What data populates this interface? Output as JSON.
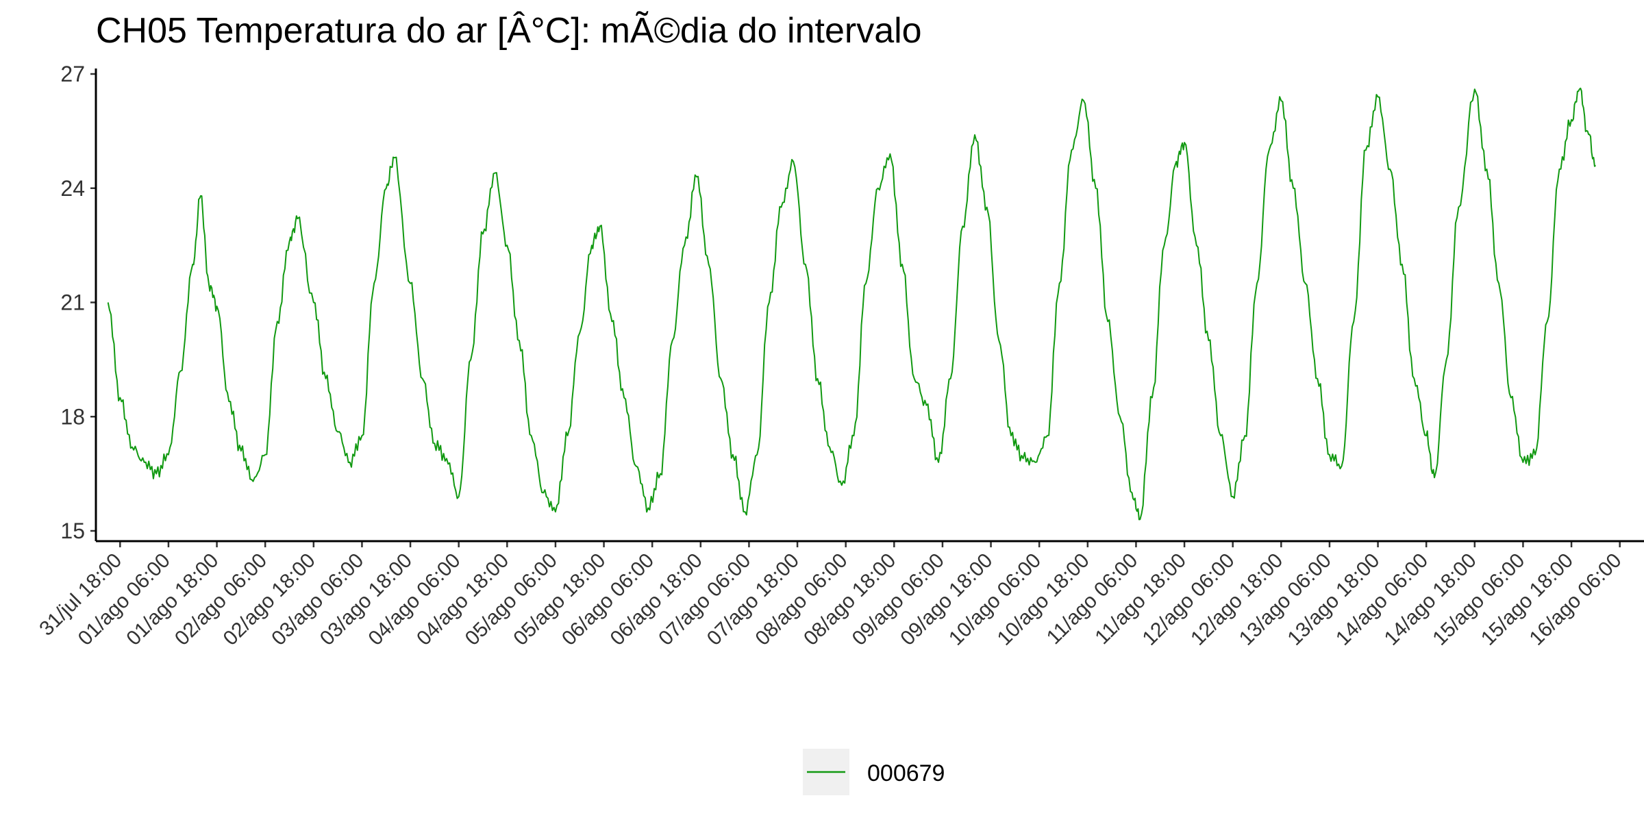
{
  "chart_data": {
    "type": "line",
    "title": "CH05 Temperatura do ar [Â°C]: mÃ©dia do intervalo",
    "xlabel": "",
    "ylabel": "",
    "ylim": [
      15,
      27
    ],
    "yticks": [
      15,
      18,
      21,
      24,
      27
    ],
    "x_range": [
      "2022-07-31 12:00",
      "2022-08-16 12:00"
    ],
    "xticks": [
      {
        "t": "2022-07-31 18:00",
        "label": "31/jul 18:00"
      },
      {
        "t": "2022-08-01 06:00",
        "label": "01/ago 06:00"
      },
      {
        "t": "2022-08-01 18:00",
        "label": "01/ago 18:00"
      },
      {
        "t": "2022-08-02 06:00",
        "label": "02/ago 06:00"
      },
      {
        "t": "2022-08-02 18:00",
        "label": "02/ago 18:00"
      },
      {
        "t": "2022-08-03 06:00",
        "label": "03/ago 06:00"
      },
      {
        "t": "2022-08-03 18:00",
        "label": "03/ago 18:00"
      },
      {
        "t": "2022-08-04 06:00",
        "label": "04/ago 06:00"
      },
      {
        "t": "2022-08-04 18:00",
        "label": "04/ago 18:00"
      },
      {
        "t": "2022-08-05 06:00",
        "label": "05/ago 06:00"
      },
      {
        "t": "2022-08-05 18:00",
        "label": "05/ago 18:00"
      },
      {
        "t": "2022-08-06 06:00",
        "label": "06/ago 06:00"
      },
      {
        "t": "2022-08-06 18:00",
        "label": "06/ago 18:00"
      },
      {
        "t": "2022-08-07 06:00",
        "label": "07/ago 06:00"
      },
      {
        "t": "2022-08-07 18:00",
        "label": "07/ago 18:00"
      },
      {
        "t": "2022-08-08 06:00",
        "label": "08/ago 06:00"
      },
      {
        "t": "2022-08-08 18:00",
        "label": "08/ago 18:00"
      },
      {
        "t": "2022-08-09 06:00",
        "label": "09/ago 06:00"
      },
      {
        "t": "2022-08-09 18:00",
        "label": "09/ago 18:00"
      },
      {
        "t": "2022-08-10 06:00",
        "label": "10/ago 06:00"
      },
      {
        "t": "2022-08-10 18:00",
        "label": "10/ago 18:00"
      },
      {
        "t": "2022-08-11 06:00",
        "label": "11/ago 06:00"
      },
      {
        "t": "2022-08-11 18:00",
        "label": "11/ago 18:00"
      },
      {
        "t": "2022-08-12 06:00",
        "label": "12/ago 06:00"
      },
      {
        "t": "2022-08-12 18:00",
        "label": "12/ago 18:00"
      },
      {
        "t": "2022-08-13 06:00",
        "label": "13/ago 06:00"
      },
      {
        "t": "2022-08-13 18:00",
        "label": "13/ago 18:00"
      },
      {
        "t": "2022-08-14 06:00",
        "label": "14/ago 06:00"
      },
      {
        "t": "2022-08-14 18:00",
        "label": "14/ago 18:00"
      },
      {
        "t": "2022-08-15 06:00",
        "label": "15/ago 06:00"
      },
      {
        "t": "2022-08-15 18:00",
        "label": "15/ago 18:00"
      },
      {
        "t": "2022-08-16 06:00",
        "label": "16/ago 06:00"
      }
    ],
    "grid": false,
    "legend_position": "bottom",
    "series": [
      {
        "name": "000679",
        "color": "#119911",
        "points": [
          [
            "2022-07-31 15:00",
            21.0
          ],
          [
            "2022-07-31 18:00",
            18.5
          ],
          [
            "2022-07-31 21:00",
            17.2
          ],
          [
            "2022-08-01 00:00",
            16.8
          ],
          [
            "2022-08-01 03:00",
            16.5
          ],
          [
            "2022-08-01 06:00",
            17.0
          ],
          [
            "2022-08-01 09:00",
            19.2
          ],
          [
            "2022-08-01 12:00",
            22.0
          ],
          [
            "2022-08-01 14:00",
            23.8
          ],
          [
            "2022-08-01 16:00",
            21.5
          ],
          [
            "2022-08-01 18:00",
            20.9
          ],
          [
            "2022-08-01 21:00",
            18.4
          ],
          [
            "2022-08-02 00:00",
            17.1
          ],
          [
            "2022-08-02 03:00",
            16.3
          ],
          [
            "2022-08-02 06:00",
            17.0
          ],
          [
            "2022-08-02 09:00",
            20.5
          ],
          [
            "2022-08-02 12:00",
            22.6
          ],
          [
            "2022-08-02 14:00",
            23.2
          ],
          [
            "2022-08-02 18:00",
            21.0
          ],
          [
            "2022-08-02 21:00",
            19.0
          ],
          [
            "2022-08-03 00:00",
            17.6
          ],
          [
            "2022-08-03 03:00",
            16.8
          ],
          [
            "2022-08-03 06:00",
            17.5
          ],
          [
            "2022-08-03 09:00",
            21.5
          ],
          [
            "2022-08-03 12:00",
            24.0
          ],
          [
            "2022-08-03 14:00",
            24.8
          ],
          [
            "2022-08-03 18:00",
            21.5
          ],
          [
            "2022-08-03 21:00",
            19.0
          ],
          [
            "2022-08-04 00:00",
            17.3
          ],
          [
            "2022-08-04 03:00",
            16.9
          ],
          [
            "2022-08-04 06:00",
            15.9
          ],
          [
            "2022-08-04 09:00",
            19.5
          ],
          [
            "2022-08-04 12:00",
            22.8
          ],
          [
            "2022-08-04 15:00",
            24.4
          ],
          [
            "2022-08-04 18:00",
            22.5
          ],
          [
            "2022-08-04 21:00",
            20.0
          ],
          [
            "2022-08-05 00:00",
            17.5
          ],
          [
            "2022-08-05 03:00",
            16.0
          ],
          [
            "2022-08-05 06:00",
            15.5
          ],
          [
            "2022-08-05 09:00",
            17.5
          ],
          [
            "2022-08-05 12:00",
            20.2
          ],
          [
            "2022-08-05 15:00",
            22.5
          ],
          [
            "2022-08-05 17:00",
            23.0
          ],
          [
            "2022-08-05 20:00",
            20.5
          ],
          [
            "2022-08-05 23:00",
            18.5
          ],
          [
            "2022-08-06 02:00",
            16.7
          ],
          [
            "2022-08-06 05:00",
            15.6
          ],
          [
            "2022-08-06 08:00",
            16.5
          ],
          [
            "2022-08-06 11:00",
            20.0
          ],
          [
            "2022-08-06 14:00",
            22.5
          ],
          [
            "2022-08-06 17:00",
            24.3
          ],
          [
            "2022-08-06 20:00",
            22.0
          ],
          [
            "2022-08-06 23:00",
            19.0
          ],
          [
            "2022-08-07 02:00",
            17.0
          ],
          [
            "2022-08-07 05:00",
            15.5
          ],
          [
            "2022-08-07 08:00",
            17.0
          ],
          [
            "2022-08-07 11:00",
            21.0
          ],
          [
            "2022-08-07 14:00",
            23.5
          ],
          [
            "2022-08-07 17:00",
            24.7
          ],
          [
            "2022-08-07 20:00",
            22.0
          ],
          [
            "2022-08-07 23:00",
            19.0
          ],
          [
            "2022-08-08 02:00",
            17.2
          ],
          [
            "2022-08-08 05:00",
            16.2
          ],
          [
            "2022-08-08 08:00",
            17.5
          ],
          [
            "2022-08-08 11:00",
            21.5
          ],
          [
            "2022-08-08 14:00",
            24.0
          ],
          [
            "2022-08-08 17:00",
            24.9
          ],
          [
            "2022-08-08 20:00",
            22.0
          ],
          [
            "2022-08-08 23:00",
            19.0
          ],
          [
            "2022-08-09 02:00",
            18.3
          ],
          [
            "2022-08-09 05:00",
            16.8
          ],
          [
            "2022-08-09 08:00",
            19.0
          ],
          [
            "2022-08-09 11:00",
            23.0
          ],
          [
            "2022-08-09 14:00",
            25.4
          ],
          [
            "2022-08-09 17:00",
            23.5
          ],
          [
            "2022-08-09 20:00",
            20.0
          ],
          [
            "2022-08-09 23:00",
            17.5
          ],
          [
            "2022-08-10 02:00",
            16.9
          ],
          [
            "2022-08-10 05:00",
            16.8
          ],
          [
            "2022-08-10 08:00",
            17.5
          ],
          [
            "2022-08-10 11:00",
            21.5
          ],
          [
            "2022-08-10 14:00",
            25.0
          ],
          [
            "2022-08-10 17:00",
            26.3
          ],
          [
            "2022-08-10 20:00",
            24.0
          ],
          [
            "2022-08-10 23:00",
            20.5
          ],
          [
            "2022-08-11 02:00",
            18.0
          ],
          [
            "2022-08-11 05:00",
            16.0
          ],
          [
            "2022-08-11 07:00",
            15.3
          ],
          [
            "2022-08-11 10:00",
            18.5
          ],
          [
            "2022-08-11 13:00",
            22.5
          ],
          [
            "2022-08-11 16:00",
            24.7
          ],
          [
            "2022-08-11 18:00",
            25.2
          ],
          [
            "2022-08-11 21:00",
            22.5
          ],
          [
            "2022-08-12 00:00",
            20.0
          ],
          [
            "2022-08-12 03:00",
            17.5
          ],
          [
            "2022-08-12 06:00",
            15.9
          ],
          [
            "2022-08-12 09:00",
            17.5
          ],
          [
            "2022-08-12 12:00",
            21.5
          ],
          [
            "2022-08-12 15:00",
            25.0
          ],
          [
            "2022-08-12 18:00",
            26.3
          ],
          [
            "2022-08-12 21:00",
            24.0
          ],
          [
            "2022-08-13 00:00",
            21.5
          ],
          [
            "2022-08-13 03:00",
            19.0
          ],
          [
            "2022-08-13 06:00",
            17.0
          ],
          [
            "2022-08-13 09:00",
            16.7
          ],
          [
            "2022-08-13 12:00",
            20.5
          ],
          [
            "2022-08-13 15:00",
            25.0
          ],
          [
            "2022-08-13 18:00",
            26.4
          ],
          [
            "2022-08-13 21:00",
            24.5
          ],
          [
            "2022-08-14 00:00",
            22.0
          ],
          [
            "2022-08-14 03:00",
            19.0
          ],
          [
            "2022-08-14 06:00",
            17.5
          ],
          [
            "2022-08-14 08:00",
            16.4
          ],
          [
            "2022-08-14 11:00",
            19.5
          ],
          [
            "2022-08-14 14:00",
            23.5
          ],
          [
            "2022-08-14 18:00",
            26.6
          ],
          [
            "2022-08-14 21:00",
            24.5
          ],
          [
            "2022-08-15 00:00",
            21.5
          ],
          [
            "2022-08-15 03:00",
            18.5
          ],
          [
            "2022-08-15 06:00",
            16.8
          ],
          [
            "2022-08-15 09:00",
            17.0
          ],
          [
            "2022-08-15 12:00",
            20.5
          ],
          [
            "2022-08-15 15:00",
            24.5
          ],
          [
            "2022-08-15 18:00",
            25.8
          ],
          [
            "2022-08-15 20:00",
            26.6
          ],
          [
            "2022-08-15 22:00",
            25.5
          ],
          [
            "2022-08-16 00:00",
            24.6
          ]
        ]
      }
    ]
  }
}
